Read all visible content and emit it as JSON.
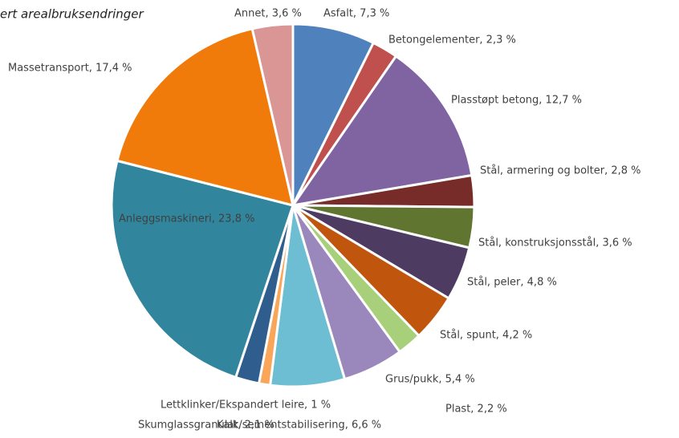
{
  "chart_data": {
    "type": "pie",
    "title": "ert arealbruksendringer",
    "labels": [
      "Asfalt, 7,3 %",
      "Betongelementer, 2,3 %",
      "Plasstøpt betong, 12,7 %",
      "Stål, armering og bolter, 2,8 %",
      "Stål, konstruksjonsstål, 3,6 %",
      "Stål, peler, 4,8 %",
      "Stål, spunt, 4,2 %",
      "Plast, 2,2 %",
      "Grus/pukk, 5,4 %",
      "Kalk/sementstabilisering, 6,6 %",
      "Lettklinker/Ekspandert leire, 1 %",
      "Skumglassgranulat, 2,1 %",
      "Anleggsmaskineri, 23,8 %",
      "Massetransport, 17,4 %",
      "Annet, 3,6 %"
    ],
    "values": [
      7.3,
      2.3,
      12.7,
      2.8,
      3.6,
      4.8,
      4.2,
      2.2,
      5.4,
      6.6,
      1,
      2.1,
      23.8,
      17.4,
      3.6
    ],
    "colors": [
      "#4f81bd",
      "#c0504d",
      "#8064a2",
      "#772c2a",
      "#5f7530",
      "#4d3b62",
      "#c0560e",
      "#a8cf7a",
      "#9a87bb",
      "#6dbed2",
      "#f9a65a",
      "#2e5d8e",
      "#31859c",
      "#f07b0b",
      "#d99694"
    ]
  }
}
